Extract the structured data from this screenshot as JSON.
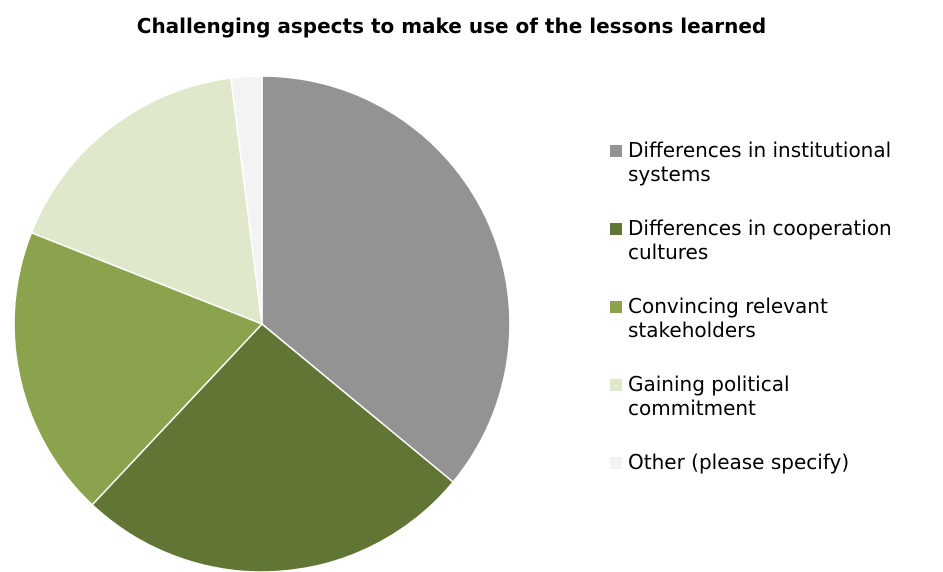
{
  "chart_data": {
    "type": "pie",
    "title": "Challenging aspects to make use of the lessons learned",
    "categories": [
      "Differences in institutional systems",
      "Differences in cooperation cultures",
      "Convincing relevant stakeholders",
      "Gaining political commitment",
      "Other (please specify)"
    ],
    "values": [
      36,
      26,
      19,
      17,
      2
    ],
    "colors": [
      "#939393",
      "#617535",
      "#8ba34c",
      "#dfe8cb",
      "#f3f3f3"
    ],
    "legend": {
      "position": "right",
      "lines": [
        [
          "Differences in institutional",
          "systems"
        ],
        [
          "Differences in cooperation",
          "cultures"
        ],
        [
          "Convincing relevant",
          "stakeholders"
        ],
        [
          "Gaining political",
          "commitment"
        ],
        [
          "Other (please specify)"
        ]
      ]
    }
  }
}
